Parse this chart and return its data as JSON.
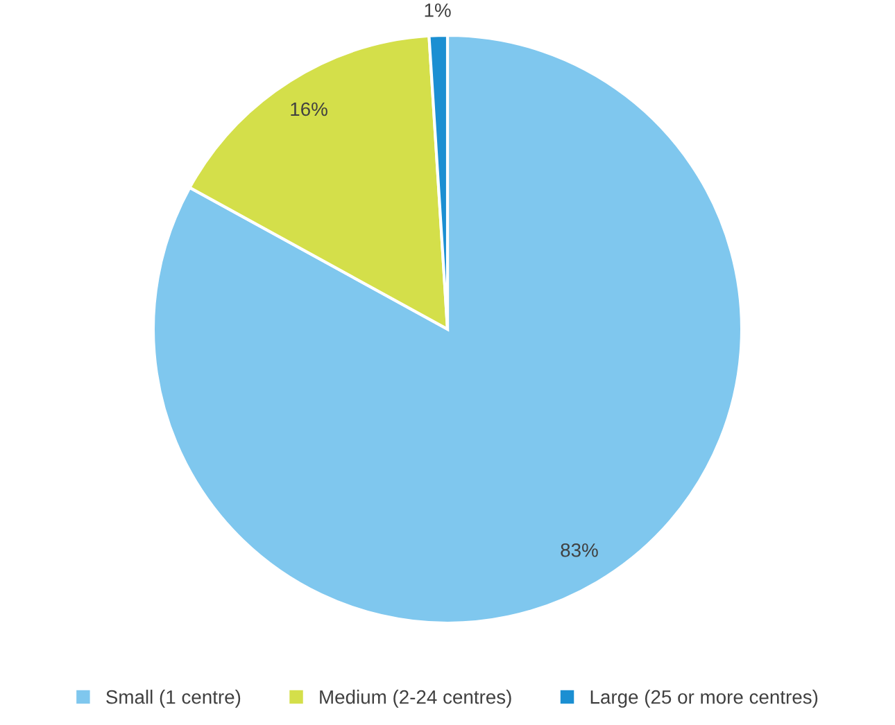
{
  "chart_data": {
    "type": "pie",
    "categories": [
      "Small (1 centre)",
      "Medium (2-24 centres)",
      "Large (25 or more centres)"
    ],
    "values": [
      83,
      16,
      1
    ],
    "colors": [
      "#7fc7ee",
      "#d4df4a",
      "#1b8fd2"
    ],
    "value_labels": [
      "83%",
      "16%",
      "1%"
    ],
    "legend": "bottom"
  }
}
